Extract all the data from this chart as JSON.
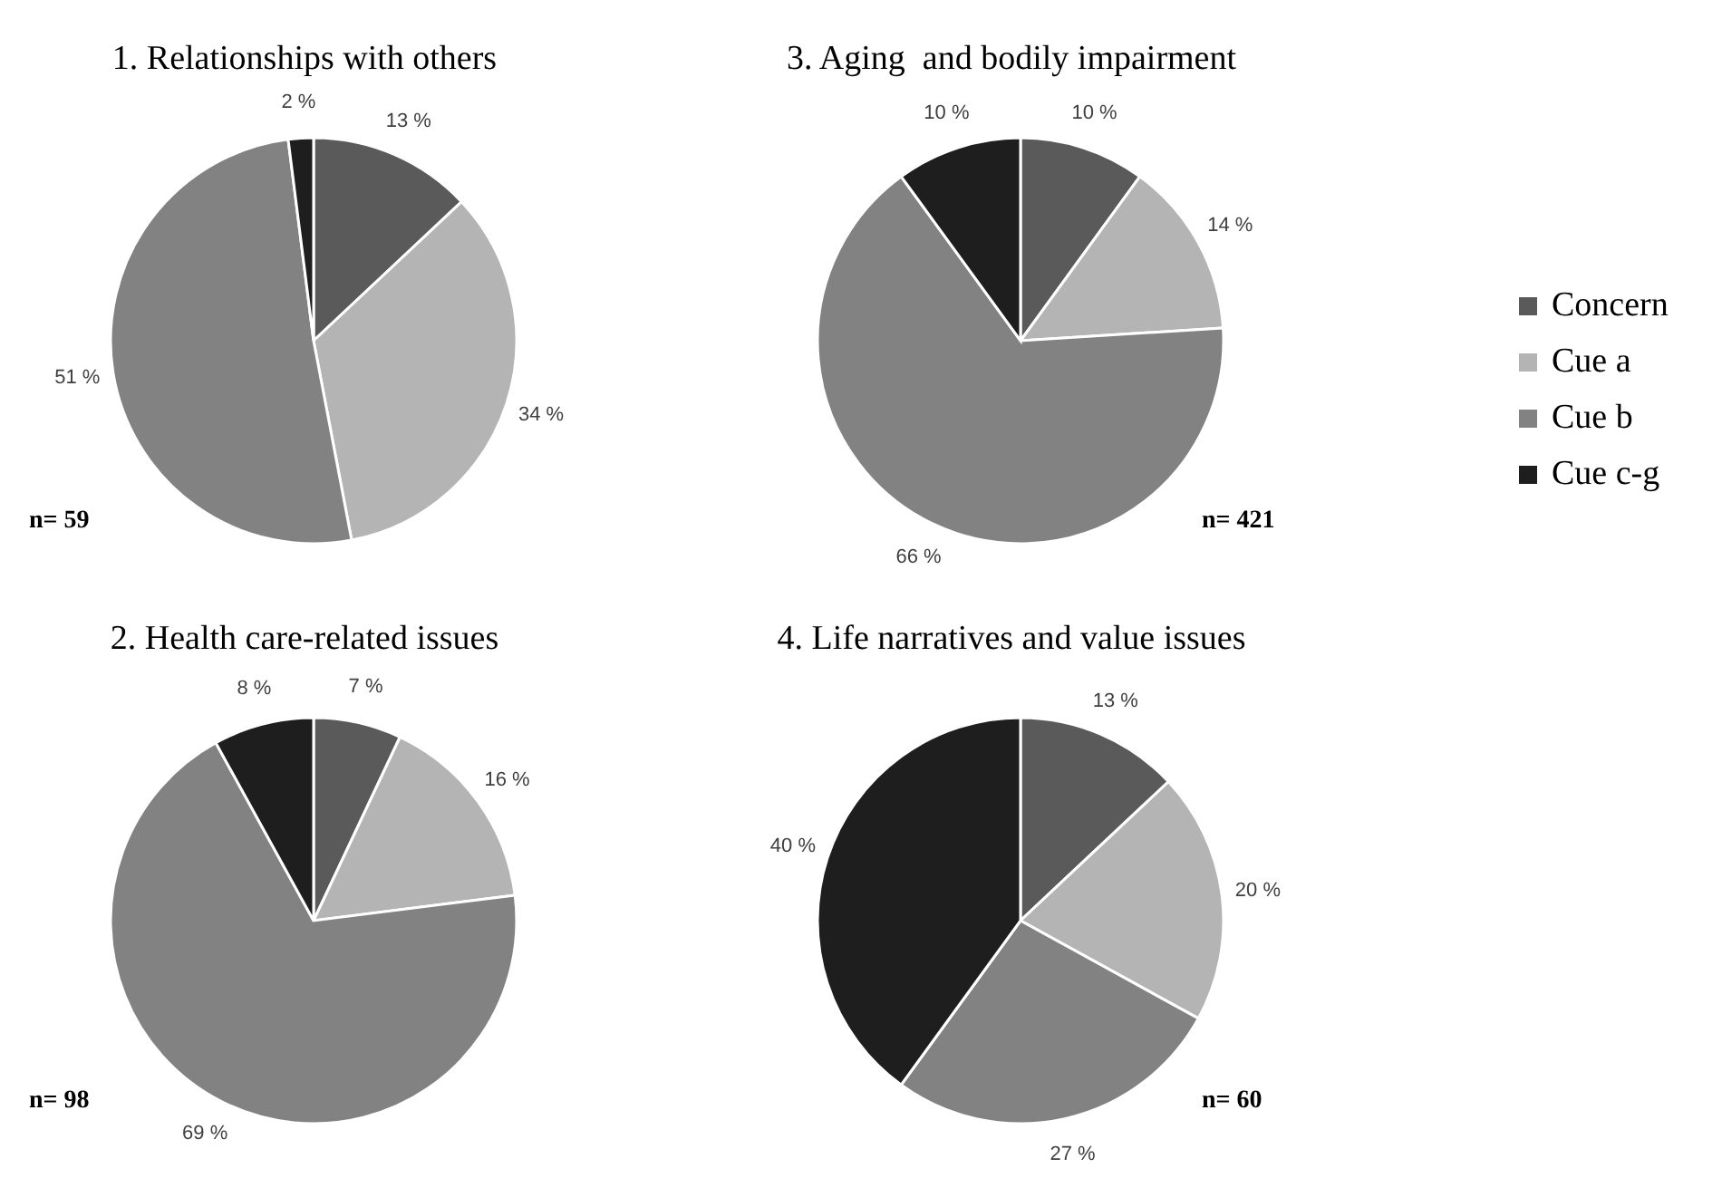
{
  "chart_data": [
    {
      "type": "pie",
      "title": "1. Relationships with others",
      "categories": [
        null,
        null,
        null,
        null
      ],
      "values": [
        13,
        34,
        51,
        2
      ],
      "value_labels": [
        "13 %",
        "34 %",
        "51 %",
        "2 %"
      ],
      "colors": [
        "#5a5a5a",
        "#b4b4b4",
        "#828282",
        "#1e1e1e"
      ],
      "annotations": [
        "n= 59"
      ],
      "legend": false
    },
    {
      "type": "pie",
      "title": "3. Aging  and bodily impairment",
      "categories": [
        "Concern",
        "Cue a",
        "Cue b",
        "Cue c-g"
      ],
      "values": [
        10,
        14,
        66,
        10
      ],
      "value_labels": [
        "10 %",
        "14 %",
        "66 %",
        "10 %"
      ],
      "colors": [
        "#5a5a5a",
        "#b4b4b4",
        "#828282",
        "#1e1e1e"
      ],
      "annotations": [
        "n= 421"
      ],
      "legend": "right"
    },
    {
      "type": "pie",
      "title": "2. Health care-related issues",
      "categories": [
        null,
        null,
        null,
        null
      ],
      "values": [
        7,
        16,
        69,
        8
      ],
      "value_labels": [
        "7 %",
        "16 %",
        "69 %",
        "8 %"
      ],
      "colors": [
        "#5a5a5a",
        "#b4b4b4",
        "#828282",
        "#1e1e1e"
      ],
      "annotations": [
        "n= 98"
      ],
      "legend": false
    },
    {
      "type": "pie",
      "title": "4. Life narratives and value issues",
      "categories": [
        null,
        null,
        null,
        null
      ],
      "values": [
        13,
        20,
        27,
        40
      ],
      "value_labels": [
        "13 %",
        "20 %",
        "27 %",
        "40 %"
      ],
      "colors": [
        "#5a5a5a",
        "#b4b4b4",
        "#828282",
        "#1e1e1e"
      ],
      "annotations": [
        "n= 60"
      ],
      "legend": false
    }
  ]
}
